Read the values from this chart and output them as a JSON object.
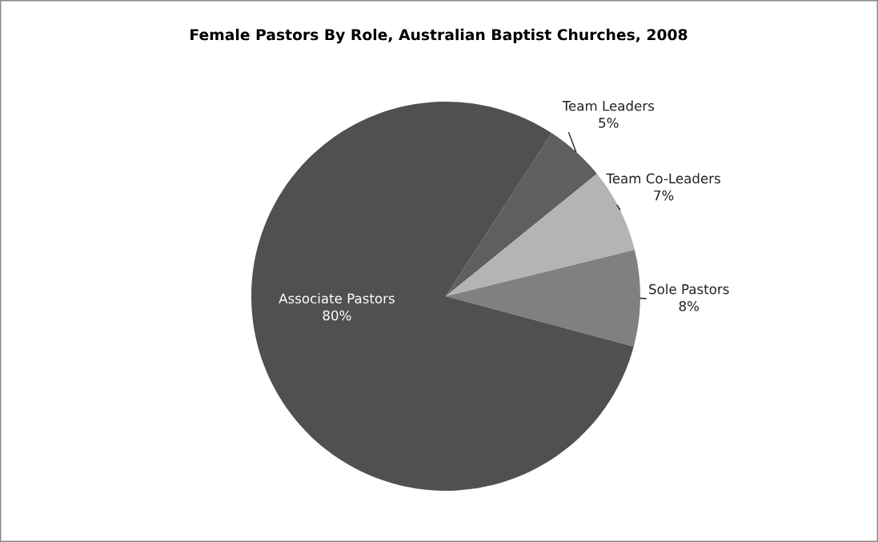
{
  "chart_data": {
    "type": "pie",
    "title": "Female Pastors By Role, Australian Baptist Churches, 2008",
    "categories": [
      "Team Leaders",
      "Team Co-Leaders",
      "Sole Pastors",
      "Associate Pastors"
    ],
    "values": [
      5,
      7,
      8,
      80
    ],
    "colors": [
      "#5f5f5f",
      "#b4b4b4",
      "#808080",
      "#505050"
    ],
    "value_labels": [
      "5%",
      "7%",
      "8%",
      "80%"
    ],
    "legend": false
  }
}
